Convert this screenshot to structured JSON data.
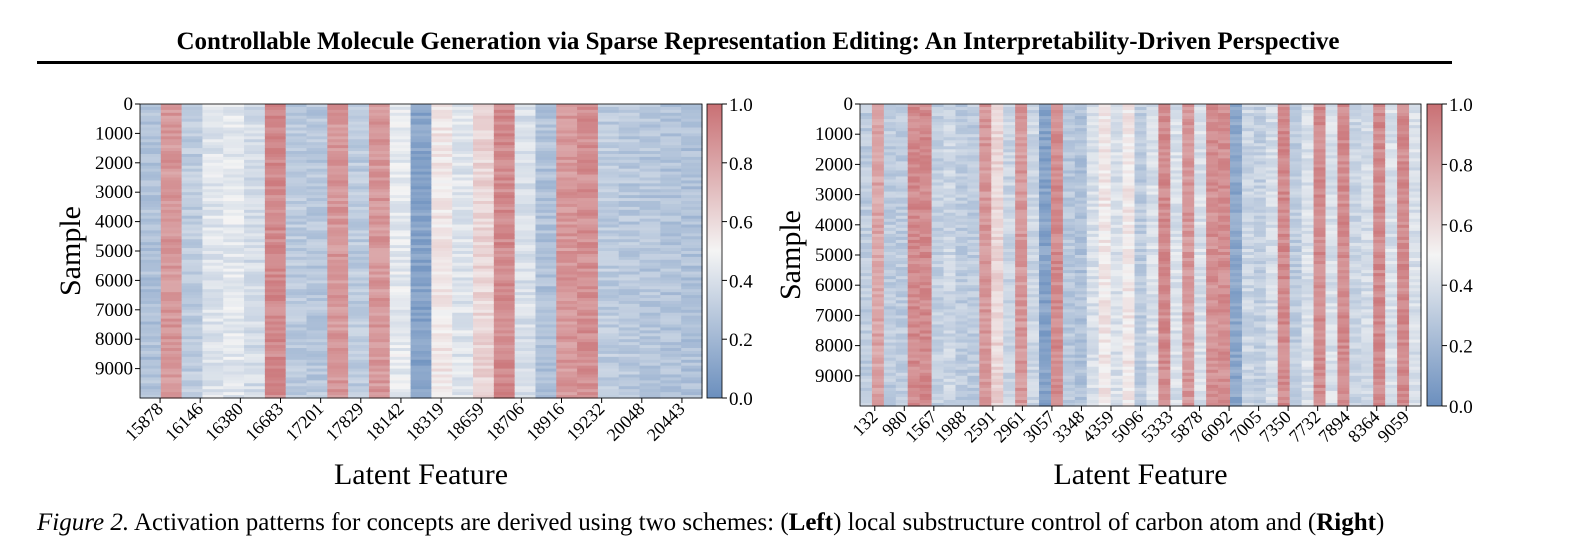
{
  "header": {
    "title": "Controllable Molecule Generation via Sparse Representation Editing: An Interpretability-Driven Perspective"
  },
  "colors": {
    "low": "#6b8fbe",
    "mid": "#f4f4f4",
    "high": "#c97074",
    "text": "#000000"
  },
  "chart_data": [
    {
      "type": "heatmap",
      "title": "",
      "xlabel": "Latent Feature",
      "ylabel": "Sample",
      "y_range": [
        0,
        10000
      ],
      "y_ticks": [
        0,
        1000,
        2000,
        3000,
        4000,
        5000,
        6000,
        7000,
        8000,
        9000
      ],
      "x_tick_labels": [
        "15878",
        "16146",
        "16380",
        "16683",
        "17201",
        "17829",
        "18142",
        "18319",
        "18659",
        "18706",
        "18916",
        "19232",
        "20048",
        "20443"
      ],
      "colorbar": {
        "range": [
          0.0,
          1.0
        ],
        "ticks": [
          "0.0",
          "0.2",
          "0.4",
          "0.6",
          "0.8",
          "1.0"
        ]
      },
      "column_mean_activation": [
        0.25,
        0.85,
        0.3,
        0.42,
        0.44,
        0.38,
        0.9,
        0.3,
        0.28,
        0.85,
        0.3,
        0.85,
        0.45,
        0.1,
        0.55,
        0.42,
        0.62,
        0.9,
        0.4,
        0.25,
        0.85,
        0.88,
        0.3,
        0.28,
        0.27,
        0.26,
        0.25
      ]
    },
    {
      "type": "heatmap",
      "title": "",
      "xlabel": "Latent Feature",
      "ylabel": "Sample",
      "y_range": [
        0,
        10000
      ],
      "y_ticks": [
        0,
        1000,
        2000,
        3000,
        4000,
        5000,
        6000,
        7000,
        8000,
        9000
      ],
      "x_tick_labels": [
        "132",
        "980",
        "1567",
        "1988",
        "2591",
        "2961",
        "3057",
        "3348",
        "4359",
        "5096",
        "5333",
        "5878",
        "6092",
        "7005",
        "7350",
        "7732",
        "7894",
        "8364",
        "9059"
      ],
      "colorbar": {
        "range": [
          0.0,
          1.0
        ],
        "ticks": [
          "0.0",
          "0.2",
          "0.4",
          "0.6",
          "0.8",
          "1.0"
        ]
      },
      "column_mean_activation": [
        0.3,
        0.8,
        0.3,
        0.3,
        0.9,
        0.9,
        0.32,
        0.35,
        0.3,
        0.3,
        0.85,
        0.62,
        0.35,
        0.85,
        0.35,
        0.1,
        0.9,
        0.28,
        0.25,
        0.4,
        0.55,
        0.4,
        0.55,
        0.3,
        0.4,
        0.9,
        0.4,
        0.85,
        0.4,
        0.88,
        0.88,
        0.12,
        0.35,
        0.32,
        0.38,
        0.9,
        0.3,
        0.4,
        0.9,
        0.4,
        0.9,
        0.35,
        0.38,
        0.9,
        0.4,
        0.9,
        0.4
      ]
    }
  ],
  "caption": {
    "figure_label": "Figure 2.",
    "text_1": " Activation patterns for concepts are derived using two schemes: (",
    "bold_1": "Left",
    "text_2": ") local substructure control of carbon atom and (",
    "bold_2": "Right",
    "text_3": ")"
  }
}
